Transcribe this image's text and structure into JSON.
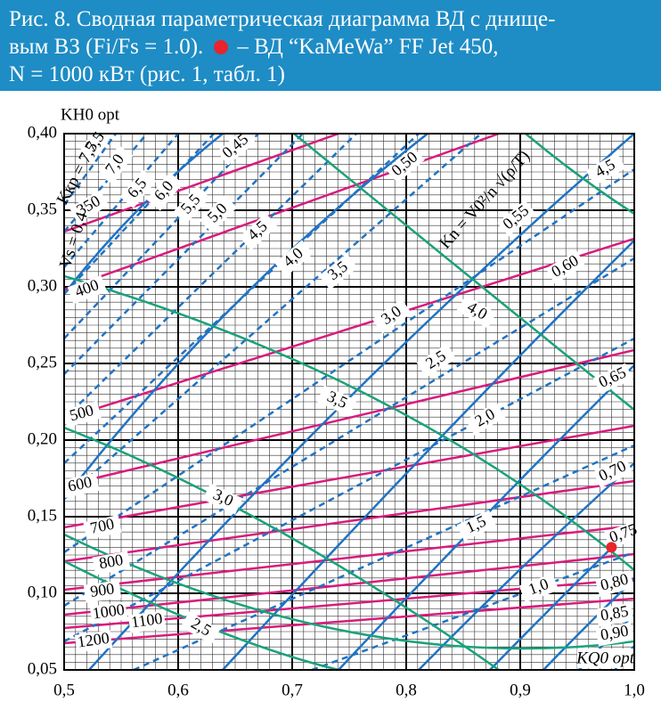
{
  "header": {
    "lines": [
      "Рис. 8. Сводная параметрическая диаграмма ВД с днище-",
      "вым ВЗ (Fi/Fs = 1.0).",
      "– ВД “KaMeWa” FF Jet 450,",
      "N = 1000 кВт (рис. 1, табл. 1)"
    ]
  },
  "chart_data": {
    "type": "scatter",
    "x_label": "KQ0 opt",
    "y_label": "KH0 opt",
    "xlim": [
      0.5,
      1.0
    ],
    "ylim": [
      0.05,
      0.4
    ],
    "xticks": [
      {
        "value": 0.5,
        "label": "0,5"
      },
      {
        "value": 0.6,
        "label": "0,6"
      },
      {
        "value": 0.7,
        "label": "0,7"
      },
      {
        "value": 0.8,
        "label": "0,8"
      },
      {
        "value": 0.9,
        "label": "0,9"
      },
      {
        "value": 1.0,
        "label": "1,0"
      }
    ],
    "yticks": [
      {
        "value": 0.05,
        "label": "0,05"
      },
      {
        "value": 0.1,
        "label": "0,10"
      },
      {
        "value": 0.15,
        "label": "0,15"
      },
      {
        "value": 0.2,
        "label": "0,20"
      },
      {
        "value": 0.25,
        "label": "0,25"
      },
      {
        "value": 0.3,
        "label": "0,30"
      },
      {
        "value": 0.35,
        "label": "0,35"
      },
      {
        "value": 0.4,
        "label": "0,40"
      }
    ],
    "grid": true,
    "series": [
      {
        "color": "#e8242c",
        "x": [
          0.98
        ],
        "values": [
          0.13
        ]
      }
    ],
    "annotations": [
      "Kкр = 7,5",
      "Vs = 0,4",
      "Kn = V0²/n √(ρ/T)"
    ],
    "curve_labels": {
      "power": [
        "350",
        "400",
        "500",
        "600",
        "700",
        "800",
        "900",
        "1000",
        "1100",
        "1200"
      ],
      "kn": [
        "7,5",
        "7,0",
        "6,5",
        "6,0",
        "5,5",
        "5,0",
        "4,5",
        "4,0",
        "3,5",
        "3,0",
        "2,5",
        "2,0",
        "1,5",
        "1,0"
      ],
      "efficiency": [
        "0,45",
        "0,50",
        "0,55",
        "0,60",
        "0,65",
        "0,70",
        "0,75",
        "0,80",
        "0,85",
        "0,90"
      ],
      "speed": [
        "4,5",
        "4,0",
        "3,5",
        "3,0",
        "2,5"
      ]
    }
  }
}
